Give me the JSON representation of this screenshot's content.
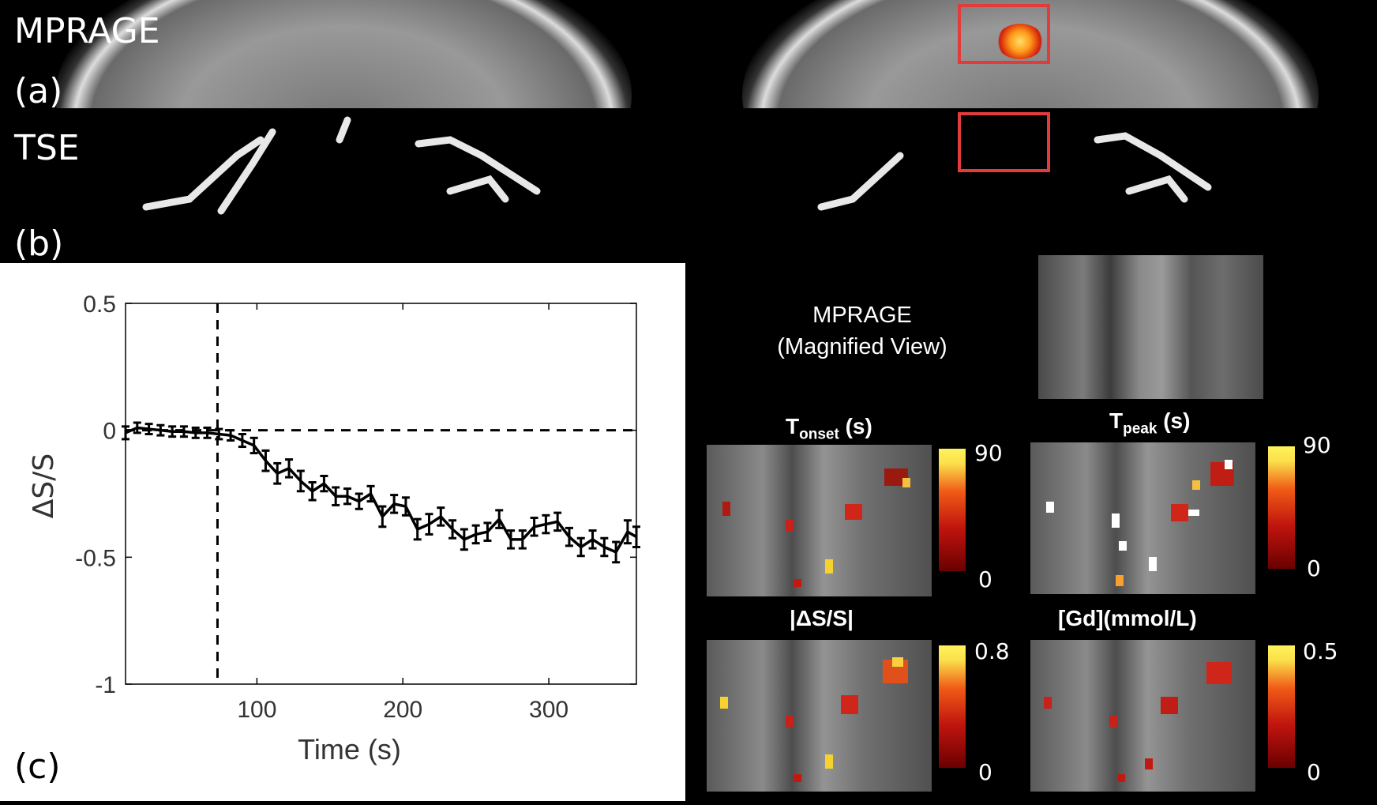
{
  "panels": {
    "a": {
      "label": "(a)",
      "sequence": "MPRAGE"
    },
    "b": {
      "label": "(b)",
      "sequence": "TSE"
    },
    "c": {
      "label": "(c)"
    }
  },
  "magnified": {
    "title_line1": "MPRAGE",
    "title_line2": "(Magnified View)"
  },
  "maps": [
    {
      "title_main": "T",
      "title_sub": "onset",
      "title_unit": " (s)",
      "cb_max": "90",
      "cb_min": "0"
    },
    {
      "title_main": "T",
      "title_sub": "peak",
      "title_unit": " (s)",
      "cb_max": "90",
      "cb_min": "0"
    },
    {
      "title_main": "|ΔS/S|",
      "title_sub": "",
      "title_unit": "",
      "cb_max": "0.8",
      "cb_min": "0"
    },
    {
      "title_main": "[Gd](mmol/L)",
      "title_sub": "",
      "title_unit": "",
      "cb_max": "0.5",
      "cb_min": "0"
    }
  ],
  "colors": {
    "roi_box": "#e23b3b",
    "colormap_low": "#6a0000",
    "colormap_high": "#fff35c"
  },
  "chart_data": {
    "type": "line",
    "title": "",
    "xlabel": "Time (s)",
    "ylabel": "ΔS/S",
    "xlim": [
      10,
      360
    ],
    "ylim": [
      -1,
      0.5
    ],
    "xticks": [
      100,
      200,
      300
    ],
    "yticks": [
      0.5,
      0,
      -0.5,
      -1
    ],
    "ytick_labels": [
      "0.5",
      "0",
      "-0.5",
      "-1"
    ],
    "xtick_labels": [
      "100",
      "200",
      "300"
    ],
    "reference_lines": {
      "horizontal_y": 0,
      "vertical_x": 73
    },
    "x": [
      10,
      18,
      26,
      34,
      42,
      50,
      58,
      66,
      74,
      82,
      90,
      98,
      106,
      114,
      122,
      130,
      138,
      146,
      154,
      162,
      170,
      178,
      186,
      194,
      202,
      210,
      218,
      226,
      234,
      242,
      250,
      258,
      266,
      274,
      282,
      290,
      298,
      306,
      314,
      322,
      330,
      338,
      346,
      354,
      360
    ],
    "y": [
      -0.01,
      0.01,
      0.005,
      0.0,
      -0.005,
      -0.005,
      -0.01,
      -0.01,
      -0.015,
      -0.02,
      -0.04,
      -0.06,
      -0.12,
      -0.17,
      -0.15,
      -0.2,
      -0.24,
      -0.21,
      -0.26,
      -0.26,
      -0.28,
      -0.25,
      -0.34,
      -0.29,
      -0.3,
      -0.39,
      -0.37,
      -0.34,
      -0.39,
      -0.43,
      -0.41,
      -0.4,
      -0.35,
      -0.43,
      -0.43,
      -0.38,
      -0.37,
      -0.36,
      -0.42,
      -0.46,
      -0.43,
      -0.46,
      -0.48,
      -0.4,
      -0.42
    ],
    "err": [
      0.025,
      0.02,
      0.02,
      0.02,
      0.02,
      0.02,
      0.02,
      0.02,
      0.02,
      0.02,
      0.025,
      0.03,
      0.04,
      0.04,
      0.035,
      0.04,
      0.035,
      0.03,
      0.035,
      0.03,
      0.03,
      0.03,
      0.04,
      0.035,
      0.035,
      0.04,
      0.04,
      0.035,
      0.035,
      0.04,
      0.035,
      0.035,
      0.035,
      0.035,
      0.035,
      0.035,
      0.035,
      0.035,
      0.035,
      0.035,
      0.035,
      0.035,
      0.04,
      0.045,
      0.04
    ]
  }
}
